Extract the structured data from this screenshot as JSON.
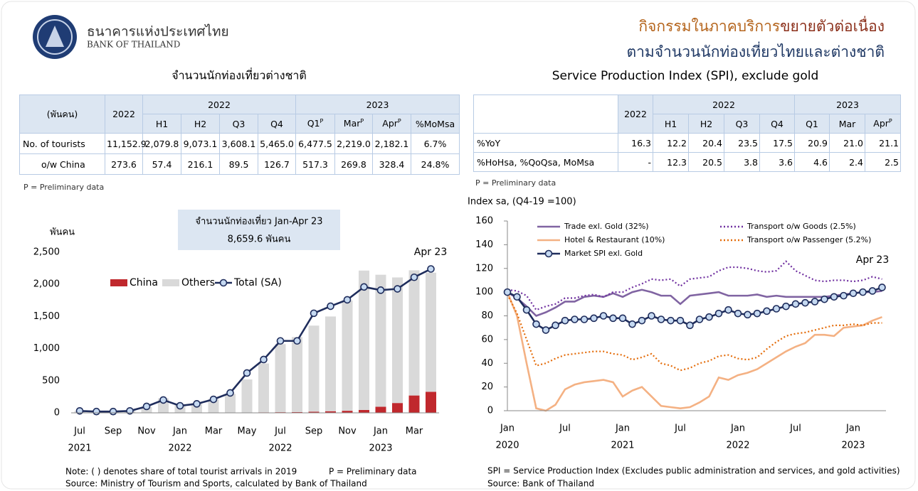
{
  "header": {
    "bank_name_th": "ธนาคารแห่งประเทศไทย",
    "bank_name_en": "BANK OF THAILAND",
    "title_line1": [
      "กิจกรรมในภาคบริการ",
      "ขยายตัวต่อเนื่อง"
    ],
    "title_line2": "ตามจำนวนนักท่องเที่ยวไทยและต่างชาติ"
  },
  "tables": [
    {
      "title": "จำนวนนักท่องเที่ยวต่างชาติ",
      "corner": "(พันคน)",
      "year_col": "2022",
      "groups": [
        {
          "label": "2022",
          "columns": [
            {
              "text": "H1"
            },
            {
              "text": "H2"
            },
            {
              "text": "Q3"
            },
            {
              "text": "Q4"
            }
          ]
        },
        {
          "label": "2023",
          "columns": [
            {
              "text": "Q1",
              "sup": "P"
            },
            {
              "text": "Mar",
              "sup": "P"
            },
            {
              "text": "Apr",
              "sup": "P"
            },
            {
              "text": "%MoMsa"
            }
          ]
        }
      ],
      "rows": [
        {
          "label": "No. of tourists",
          "cells": [
            "11,152.9",
            "2,079.8",
            "9,073.1",
            "3,608.1",
            "5,465.0",
            "6,477.5",
            "2,219.0",
            "2,182.1",
            "6.7%"
          ]
        },
        {
          "label": "o/w China",
          "cells": [
            "273.6",
            "57.4",
            "216.1",
            "89.5",
            "126.7",
            "517.3",
            "269.8",
            "328.4",
            "24.8%"
          ]
        }
      ],
      "note": "P = Preliminary data"
    },
    {
      "title": "Service Production Index (SPI), exclude gold",
      "year_col": "2022",
      "groups": [
        {
          "label": "2022",
          "columns": [
            {
              "text": "H1"
            },
            {
              "text": "H2"
            },
            {
              "text": "Q3"
            },
            {
              "text": "Q4"
            }
          ]
        },
        {
          "label": "2023",
          "columns": [
            {
              "text": "Q1"
            },
            {
              "text": "Mar"
            },
            {
              "text": "Apr",
              "sup": "P"
            }
          ]
        }
      ],
      "rows": [
        {
          "label": "%YoY",
          "cells": [
            "16.3",
            "12.2",
            "20.4",
            "23.5",
            "17.5",
            "20.9",
            "21.0",
            "21.1"
          ]
        },
        {
          "label": "%HoHsa, %QoQsa, MoMsa",
          "cells": [
            "-",
            "12.3",
            "20.5",
            "3.8",
            "3.6",
            "4.6",
            "2.4",
            "2.5"
          ]
        }
      ],
      "note": "P = Preliminary data"
    }
  ],
  "chart_data": [
    {
      "type": "bar",
      "stacked": true,
      "ylabel": "พันคน",
      "annotation": "Apr 23",
      "box_text": [
        "จำนวนนักท่องเที่ยว Jan-Apr 23",
        "8,659.6 พันคน"
      ],
      "categories": [
        "Jul",
        null,
        "Sep",
        null,
        "Nov",
        null,
        "Jan",
        null,
        "Mar",
        null,
        "May",
        null,
        "Jul",
        null,
        "Sep",
        null,
        "Nov",
        null,
        "Jan",
        null,
        "Mar",
        null
      ],
      "x_groups": [
        {
          "label": "2021",
          "index": 0
        },
        {
          "label": "2022",
          "index": 6
        },
        {
          "label": "2022",
          "index": 12
        },
        {
          "label": "2023",
          "index": 18
        }
      ],
      "ylim": [
        0,
        2500
      ],
      "yticks": [
        0,
        500,
        {
          "value": 1000,
          "label": "1,000"
        },
        {
          "value": 1500,
          "label": "1,500"
        },
        {
          "value": 2000,
          "label": "2,000"
        },
        {
          "value": 2500,
          "label": "2,500"
        }
      ],
      "grid": false,
      "series": [
        {
          "name": "China",
          "type": "bar",
          "color": "#c0282d",
          "values": [
            1,
            1,
            1,
            2,
            3,
            5,
            5,
            5,
            5,
            5,
            5,
            8,
            10,
            12,
            18,
            25,
            32,
            45,
            95,
            153,
            270,
            328
          ]
        },
        {
          "name": "Others",
          "type": "bar",
          "color": "#d9d9d9",
          "values": [
            25,
            20,
            20,
            35,
            90,
            220,
            128,
            148,
            205,
            290,
            515,
            760,
            1060,
            1168,
            1340,
            1475,
            1718,
            2170,
            2055,
            1955,
            1949,
            1854
          ]
        },
        {
          "name": "Total (SA)",
          "type": "line",
          "marker": "circle",
          "color": "#1f2d5c",
          "marker_fill": "#c5d9f1",
          "values": [
            30,
            20,
            20,
            30,
            100,
            200,
            110,
            140,
            210,
            310,
            620,
            830,
            1120,
            1120,
            1550,
            1660,
            1760,
            1960,
            1910,
            1930,
            2110,
            2240
          ]
        }
      ]
    },
    {
      "type": "line",
      "ylabel": "Index sa, (Q4-19 =100)",
      "annotation": "Apr 23",
      "categories": [
        "Jan",
        null,
        null,
        null,
        null,
        null,
        "Jul",
        null,
        null,
        null,
        null,
        null,
        "Jan",
        null,
        null,
        null,
        null,
        null,
        "Jul",
        null,
        null,
        null,
        null,
        null,
        "Jan",
        null,
        null,
        null,
        null,
        null,
        "Jul",
        null,
        null,
        null,
        null,
        null,
        "Jan",
        null,
        null,
        null
      ],
      "x_groups": [
        {
          "label": "2020",
          "index": 0
        },
        {
          "label": "2021",
          "index": 12
        },
        {
          "label": "2022",
          "index": 24
        },
        {
          "label": "2023",
          "index": 36
        }
      ],
      "ylim": [
        0,
        160
      ],
      "yticks": [
        0,
        20,
        40,
        60,
        80,
        100,
        120,
        140,
        160
      ],
      "grid": false,
      "series": [
        {
          "name": "Trade exl. Gold (32%)",
          "color": "#8064a2",
          "style": "solid",
          "values": [
            100,
            95,
            88,
            80,
            83,
            87,
            92,
            92,
            96,
            97,
            96,
            99,
            96,
            100,
            102,
            100,
            97,
            97,
            90,
            97,
            98,
            99,
            100,
            97,
            97,
            97,
            98,
            96,
            97,
            96,
            96,
            96,
            96,
            96,
            97,
            98,
            99,
            100,
            100,
            101
          ]
        },
        {
          "name": "Transport o/w Goods (2.5%)",
          "color": "#7030a0",
          "style": "dotted",
          "values": [
            102,
            101,
            97,
            85,
            88,
            90,
            95,
            95,
            97,
            98,
            96,
            100,
            100,
            104,
            107,
            111,
            110,
            111,
            105,
            111,
            112,
            113,
            118,
            121,
            121,
            120,
            118,
            117,
            118,
            126,
            118,
            114,
            110,
            109,
            110,
            110,
            109,
            110,
            113,
            111
          ]
        },
        {
          "name": "Hotel & Restaurant (10%)",
          "color": "#f4b183",
          "style": "solid",
          "values": [
            100,
            80,
            40,
            2,
            0,
            5,
            18,
            22,
            24,
            25,
            26,
            24,
            12,
            17,
            20,
            12,
            4,
            3,
            2,
            3,
            7,
            12,
            28,
            26,
            30,
            32,
            35,
            40,
            45,
            50,
            54,
            57,
            64,
            64,
            63,
            70,
            71,
            72,
            76,
            79
          ]
        },
        {
          "name": "Transport o/w Passenger (5.2%)",
          "color": "#e46c0a",
          "style": "dotted",
          "values": [
            98,
            82,
            60,
            38,
            40,
            44,
            47,
            48,
            49,
            50,
            50,
            48,
            47,
            43,
            45,
            48,
            40,
            38,
            34,
            36,
            40,
            42,
            46,
            47,
            44,
            43,
            45,
            52,
            58,
            63,
            65,
            66,
            68,
            70,
            72,
            72,
            73,
            72,
            74,
            74
          ]
        },
        {
          "name": "Market SPI exl. Gold",
          "color": "#1f2d5c",
          "style": "solid",
          "marker": "circle",
          "marker_fill": "#c5d9f1",
          "values": [
            100,
            96,
            85,
            73,
            68,
            72,
            76,
            77,
            77,
            78,
            80,
            78,
            78,
            73,
            76,
            80,
            77,
            76,
            76,
            72,
            77,
            79,
            82,
            85,
            82,
            81,
            82,
            84,
            86,
            88,
            90,
            91,
            92,
            94,
            96,
            97,
            99,
            100,
            101,
            104
          ]
        }
      ]
    }
  ],
  "notes": {
    "left": [
      "Note: ( ) denotes share of total tourist arrivals in 2019",
      "Source: Ministry of Tourism and Sports, calculated by Bank of Thailand"
    ],
    "left_note_p": "P = Preliminary data",
    "right": [
      "SPI = Service Production Index (Excludes public administration and services, and gold activities)",
      "Source: Bank of Thailand"
    ]
  }
}
